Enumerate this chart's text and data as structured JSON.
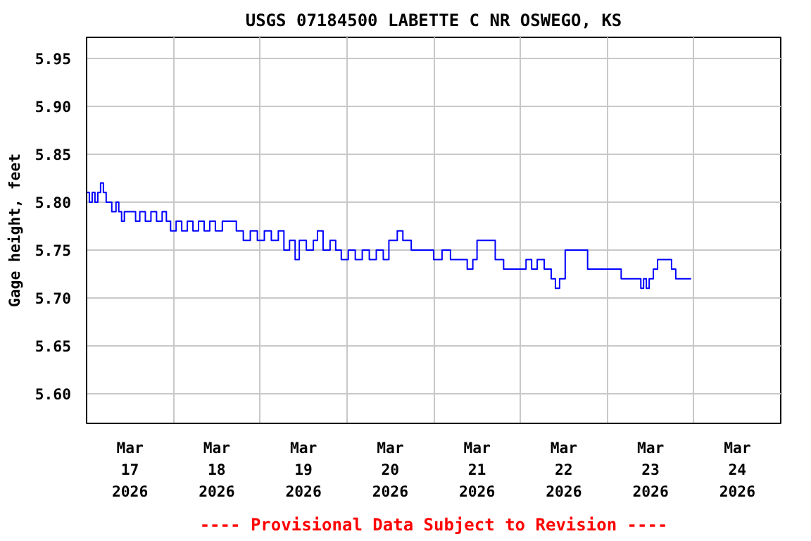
{
  "chart_data": {
    "type": "step",
    "title": "USGS 07184500 LABETTE C NR OSWEGO, KS",
    "ylabel": "Gage height, feet",
    "annotations": [
      "---- Provisional Data Subject to Revision ----"
    ],
    "x": [
      "2026-03-17T00:00",
      "2026-03-17T00:46",
      "2026-03-17T01:33",
      "2026-03-17T02:19",
      "2026-03-17T03:06",
      "2026-03-17T03:52",
      "2026-03-17T04:39",
      "2026-03-17T05:25",
      "2026-03-17T06:12",
      "2026-03-17T06:58",
      "2026-03-17T08:08",
      "2026-03-17T08:54",
      "2026-03-17T09:41",
      "2026-03-17T10:27",
      "2026-03-17T12:23",
      "2026-03-17T13:33",
      "2026-03-17T14:43",
      "2026-03-17T16:15",
      "2026-03-17T17:48",
      "2026-03-17T19:21",
      "2026-03-17T20:54",
      "2026-03-17T22:04",
      "2026-03-17T23:14",
      "2026-03-18T00:46",
      "2026-03-18T02:19",
      "2026-03-18T03:52",
      "2026-03-18T05:25",
      "2026-03-18T06:58",
      "2026-03-18T08:31",
      "2026-03-18T10:04",
      "2026-03-18T11:37",
      "2026-03-18T13:33",
      "2026-03-18T15:29",
      "2026-03-18T17:25",
      "2026-03-18T19:21",
      "2026-03-18T21:17",
      "2026-03-18T23:14",
      "2026-03-19T01:10",
      "2026-03-19T03:06",
      "2026-03-19T05:02",
      "2026-03-19T06:35",
      "2026-03-19T08:08",
      "2026-03-19T09:41",
      "2026-03-19T10:50",
      "2026-03-19T12:47",
      "2026-03-19T14:43",
      "2026-03-19T15:52",
      "2026-03-19T17:25",
      "2026-03-19T19:21",
      "2026-03-19T20:54",
      "2026-03-19T22:27",
      "2026-03-20T00:23",
      "2026-03-20T02:19",
      "2026-03-20T04:15",
      "2026-03-20T06:12",
      "2026-03-20T08:08",
      "2026-03-20T10:04",
      "2026-03-20T11:37",
      "2026-03-20T13:56",
      "2026-03-20T15:29",
      "2026-03-20T17:48",
      "2026-03-20T20:08",
      "2026-03-20T22:27",
      "2026-03-21T00:00",
      "2026-03-21T02:19",
      "2026-03-21T04:39",
      "2026-03-21T06:58",
      "2026-03-21T09:17",
      "2026-03-21T10:50",
      "2026-03-21T12:00",
      "2026-03-21T15:06",
      "2026-03-21T17:02",
      "2026-03-21T19:21",
      "2026-03-22T00:00",
      "2026-03-22T01:33",
      "2026-03-22T03:06",
      "2026-03-22T04:39",
      "2026-03-22T06:35",
      "2026-03-22T08:31",
      "2026-03-22T09:41",
      "2026-03-22T10:50",
      "2026-03-22T12:23",
      "2026-03-22T15:06",
      "2026-03-22T18:35",
      "2026-03-23T03:52",
      "2026-03-23T08:31",
      "2026-03-23T09:18",
      "2026-03-23T10:04",
      "2026-03-23T10:50",
      "2026-03-23T11:37",
      "2026-03-23T12:46",
      "2026-03-23T13:56",
      "2026-03-23T16:15",
      "2026-03-23T17:48",
      "2026-03-23T18:58",
      "2026-03-23T23:13"
    ],
    "series": [
      {
        "color": "#0000ff",
        "values": [
          5.81,
          5.8,
          5.81,
          5.8,
          5.81,
          5.82,
          5.81,
          5.8,
          5.8,
          5.79,
          5.8,
          5.79,
          5.78,
          5.79,
          5.79,
          5.78,
          5.79,
          5.78,
          5.79,
          5.78,
          5.79,
          5.78,
          5.77,
          5.78,
          5.77,
          5.78,
          5.77,
          5.78,
          5.77,
          5.78,
          5.77,
          5.78,
          5.78,
          5.77,
          5.76,
          5.77,
          5.76,
          5.77,
          5.76,
          5.77,
          5.75,
          5.76,
          5.74,
          5.76,
          5.75,
          5.76,
          5.77,
          5.75,
          5.76,
          5.75,
          5.74,
          5.75,
          5.74,
          5.75,
          5.74,
          5.75,
          5.74,
          5.76,
          5.77,
          5.76,
          5.75,
          5.75,
          5.75,
          5.74,
          5.75,
          5.74,
          5.74,
          5.73,
          5.74,
          5.76,
          5.76,
          5.74,
          5.73,
          5.73,
          5.74,
          5.73,
          5.74,
          5.73,
          5.72,
          5.71,
          5.72,
          5.75,
          5.75,
          5.73,
          5.72,
          5.72,
          5.71,
          5.72,
          5.71,
          5.72,
          5.73,
          5.74,
          5.74,
          5.73,
          5.72,
          5.72
        ]
      }
    ],
    "xlim": [
      "2026-03-17T00:00",
      "2026-03-25T00:00"
    ],
    "xticks": [
      {
        "value": "2026-03-17T12:00",
        "label": "Mar\n17\n2026"
      },
      {
        "value": "2026-03-18T00:00",
        "label": null
      },
      {
        "value": "2026-03-18T12:00",
        "label": "Mar\n18\n2026"
      },
      {
        "value": "2026-03-19T00:00",
        "label": null
      },
      {
        "value": "2026-03-19T12:00",
        "label": "Mar\n19\n2026"
      },
      {
        "value": "2026-03-20T00:00",
        "label": null
      },
      {
        "value": "2026-03-20T12:00",
        "label": "Mar\n20\n2026"
      },
      {
        "value": "2026-03-21T00:00",
        "label": null
      },
      {
        "value": "2026-03-21T12:00",
        "label": "Mar\n21\n2026"
      },
      {
        "value": "2026-03-22T00:00",
        "label": null
      },
      {
        "value": "2026-03-22T12:00",
        "label": "Mar\n22\n2026"
      },
      {
        "value": "2026-03-23T00:00",
        "label": null
      },
      {
        "value": "2026-03-23T12:00",
        "label": "Mar\n23\n2026"
      },
      {
        "value": "2026-03-24T00:00",
        "label": null
      },
      {
        "value": "2026-03-24T12:00",
        "label": "Mar\n24\n2026"
      }
    ],
    "ylim": [
      5.569,
      5.972
    ],
    "yticks": [
      {
        "value": 5.6,
        "label": "5.60"
      },
      {
        "value": 5.65,
        "label": "5.65"
      },
      {
        "value": 5.7,
        "label": "5.70"
      },
      {
        "value": 5.75,
        "label": "5.75"
      },
      {
        "value": 5.8,
        "label": "5.80"
      },
      {
        "value": 5.85,
        "label": "5.85"
      },
      {
        "value": 5.9,
        "label": "5.90"
      },
      {
        "value": 5.95,
        "label": "5.95"
      }
    ],
    "grid": true
  }
}
